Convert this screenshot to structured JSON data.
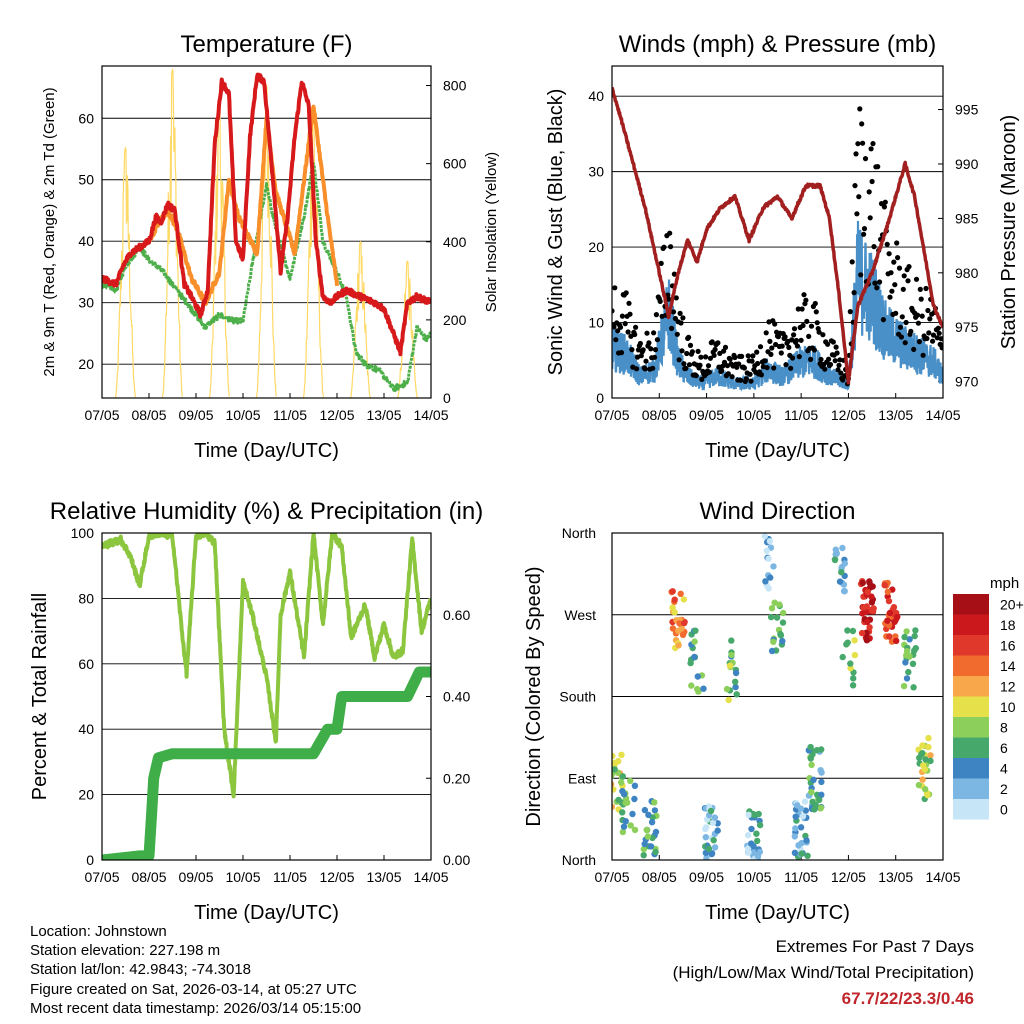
{
  "chart_data": [
    {
      "type": "line",
      "title": "Temperature (F)",
      "xlabel": "Time (Day/UTC)",
      "ylabel_left": "2m & 9m T (Red, Orange) & 2m Td (Green)",
      "ylabel_right": "Solar Insolation (Yellow)",
      "x_ticks": [
        "07/05",
        "08/05",
        "09/05",
        "10/05",
        "11/05",
        "12/05",
        "13/05",
        "14/05"
      ],
      "xlim": [
        0,
        7
      ],
      "ylim_left": [
        14.5,
        68.5
      ],
      "yticks_left": [
        20,
        30,
        40,
        50,
        60
      ],
      "ylim_right": [
        0,
        850
      ],
      "yticks_right": [
        0,
        200,
        400,
        600,
        800
      ],
      "series": [
        {
          "name": "2m T",
          "color": "#d7191c",
          "x": [
            0,
            0.3,
            0.45,
            0.6,
            0.8,
            1.0,
            1.15,
            1.25,
            1.4,
            1.55,
            1.75,
            1.9,
            2.1,
            2.25,
            2.4,
            2.55,
            2.7,
            2.85,
            3.0,
            3.15,
            3.3,
            3.45,
            3.65,
            3.8,
            3.95,
            4.1,
            4.25,
            4.4,
            4.55,
            4.7,
            4.85,
            5.0,
            5.2,
            5.5,
            5.8,
            6.0,
            6.2,
            6.35,
            6.5,
            6.7,
            7.0
          ],
          "y": [
            34,
            33,
            36,
            38,
            39,
            40,
            44,
            43,
            46,
            45,
            33,
            31,
            28,
            32,
            56,
            66,
            64,
            40,
            37,
            57,
            67,
            66,
            49,
            35,
            44,
            57,
            66,
            62,
            40,
            31,
            30,
            31,
            32,
            31,
            30,
            29,
            25,
            22,
            30,
            31,
            30
          ]
        },
        {
          "name": "9m T",
          "color": "#f98f2a",
          "x": [
            1.0,
            1.2,
            1.4,
            1.6,
            1.9,
            2.2,
            2.5,
            2.7,
            2.9,
            3.3,
            3.5,
            3.7,
            4.1,
            4.3,
            4.5,
            4.6,
            4.8,
            5.0
          ],
          "y": [
            40,
            43,
            45,
            42,
            34,
            30,
            35,
            50,
            44,
            38,
            60,
            48,
            38,
            50,
            62,
            56,
            44,
            33
          ]
        },
        {
          "name": "2m Td",
          "color": "#4daf4a",
          "x": [
            0,
            0.3,
            0.5,
            0.8,
            1.0,
            1.3,
            1.5,
            1.8,
            2.0,
            2.2,
            2.5,
            2.8,
            3.0,
            3.3,
            3.5,
            3.7,
            4.0,
            4.3,
            4.5,
            4.7,
            5.0,
            5.2,
            5.4,
            5.6,
            5.9,
            6.2,
            6.5,
            6.7,
            6.9,
            7.0
          ],
          "y": [
            33,
            32,
            36,
            39,
            37,
            35,
            33,
            30,
            28,
            26,
            28,
            27,
            27,
            41,
            49,
            42,
            34,
            44,
            53,
            40,
            35,
            31,
            22,
            20,
            19,
            16,
            17,
            26,
            24,
            25
          ]
        },
        {
          "name": "Solar Insolation",
          "color": "#ffd966",
          "axis": "right",
          "peaks_x": [
            0.5,
            1.5,
            2.5,
            3.5,
            4.5,
            5.5,
            6.5
          ],
          "peaks_y": [
            640,
            840,
            760,
            800,
            720,
            400,
            350
          ]
        }
      ]
    },
    {
      "type": "scatter",
      "title": "Winds (mph) & Pressure (mb)",
      "xlabel": "Time (Day/UTC)",
      "ylabel_left": "Sonic Wind & Gust (Blue, Black)",
      "ylabel_right": "Station Pressure (Maroon)",
      "x_ticks": [
        "07/05",
        "08/05",
        "09/05",
        "10/05",
        "11/05",
        "12/05",
        "13/05",
        "14/05"
      ],
      "xlim": [
        0,
        7
      ],
      "ylim_left": [
        0,
        44
      ],
      "yticks_left": [
        0,
        10,
        20,
        30,
        40
      ],
      "ylim_right": [
        968.5,
        999
      ],
      "yticks_right": [
        970,
        975,
        980,
        985,
        990,
        995
      ],
      "series": [
        {
          "name": "Wind",
          "color": "#4a90c8",
          "x": [
            0,
            0.3,
            0.6,
            0.9,
            1.2,
            1.4,
            1.6,
            1.9,
            2.2,
            2.6,
            3.0,
            3.3,
            3.6,
            4.0,
            4.3,
            4.6,
            5.0,
            5.2,
            5.5,
            5.8,
            6.2,
            6.5,
            6.8,
            7.0
          ],
          "y": [
            7,
            6,
            3,
            4,
            12,
            5,
            3,
            2,
            3,
            2,
            2,
            4,
            3,
            5,
            5,
            3,
            2,
            17,
            14,
            9,
            7,
            6,
            5,
            3
          ]
        },
        {
          "name": "Gust",
          "color": "#000000",
          "x": [
            0,
            0.3,
            0.6,
            0.9,
            1.2,
            1.4,
            1.6,
            1.9,
            2.2,
            2.6,
            3.0,
            3.3,
            3.6,
            4.0,
            4.3,
            4.6,
            5.0,
            5.2,
            5.5,
            5.8,
            6.2,
            6.5,
            6.8,
            7.0
          ],
          "y": [
            12,
            10,
            6,
            7,
            20,
            10,
            6,
            4,
            6,
            4,
            4,
            8,
            6,
            10,
            9,
            6,
            3,
            30,
            27,
            18,
            13,
            11,
            10,
            6
          ]
        },
        {
          "name": "Station Pressure",
          "color": "#a11f1f",
          "axis": "right",
          "x": [
            0,
            0.2,
            0.45,
            0.7,
            1.0,
            1.2,
            1.4,
            1.6,
            1.8,
            2.0,
            2.3,
            2.6,
            2.9,
            3.2,
            3.5,
            3.8,
            4.1,
            4.4,
            4.6,
            4.8,
            5.0,
            5.2,
            5.5,
            5.8,
            6.0,
            6.2,
            6.4,
            6.6,
            6.8,
            7.0
          ],
          "y": [
            997,
            994,
            990,
            986,
            980,
            976,
            980,
            983,
            981,
            984,
            986,
            987,
            983,
            986,
            987,
            985,
            988,
            988,
            985,
            978,
            970,
            977,
            980,
            984,
            987,
            990,
            987,
            982,
            977,
            975
          ]
        }
      ]
    },
    {
      "type": "line",
      "title": "Relative Humidity (%) & Precipitation (in)",
      "xlabel": "Time (Day/UTC)",
      "ylabel_left": "Percent & Total Rainfall",
      "x_ticks": [
        "07/05",
        "08/05",
        "09/05",
        "10/05",
        "11/05",
        "12/05",
        "13/05",
        "14/05"
      ],
      "xlim": [
        0,
        7
      ],
      "ylim_left": [
        0,
        100
      ],
      "yticks_left": [
        0,
        20,
        40,
        60,
        80,
        100
      ],
      "ylim_right": [
        0,
        0.8
      ],
      "yticks_right": [
        "0.00",
        "0.20",
        "0.40",
        "0.60"
      ],
      "series": [
        {
          "name": "Relative Humidity",
          "color": "#8cc63f",
          "x": [
            0,
            0.4,
            0.6,
            0.8,
            1.0,
            1.2,
            1.5,
            1.7,
            1.8,
            2.0,
            2.2,
            2.4,
            2.6,
            2.8,
            3.0,
            3.2,
            3.5,
            3.7,
            3.8,
            4.0,
            4.3,
            4.5,
            4.7,
            4.9,
            5.1,
            5.3,
            5.6,
            5.8,
            6.0,
            6.2,
            6.4,
            6.6,
            6.8,
            7.0
          ],
          "y": [
            96,
            98,
            93,
            84,
            99,
            100,
            99,
            70,
            57,
            99,
            100,
            97,
            40,
            20,
            85,
            75,
            56,
            36,
            75,
            88,
            62,
            100,
            72,
            100,
            96,
            68,
            78,
            62,
            72,
            62,
            64,
            98,
            70,
            80
          ]
        },
        {
          "name": "Total Rainfall",
          "color": "#3fae49",
          "axis": "right",
          "x": [
            0,
            0.8,
            1.0,
            1.05,
            1.1,
            1.2,
            1.5,
            2.0,
            3.0,
            4.0,
            4.5,
            4.8,
            5.0,
            5.1,
            5.2,
            6.0,
            6.5,
            6.75,
            7.0
          ],
          "y": [
            0,
            0.01,
            0.01,
            0.1,
            0.2,
            0.25,
            0.26,
            0.26,
            0.26,
            0.26,
            0.26,
            0.32,
            0.32,
            0.4,
            0.4,
            0.4,
            0.4,
            0.46,
            0.46
          ]
        }
      ]
    },
    {
      "type": "scatter",
      "title": "Wind Direction",
      "xlabel": "Time (Day/UTC)",
      "ylabel_left": "Direction (Colored By Speed)",
      "x_ticks": [
        "07/05",
        "08/05",
        "09/05",
        "10/05",
        "11/05",
        "12/05",
        "13/05",
        "14/05"
      ],
      "xlim": [
        0,
        7
      ],
      "ylim_left": [
        0,
        360
      ],
      "direction_labels": [
        "North",
        "East",
        "South",
        "West",
        "North"
      ],
      "direction_values": [
        0,
        90,
        180,
        270,
        360
      ],
      "colorbar_unit": "mph",
      "colorbar_labels": [
        "20+",
        "18",
        "16",
        "14",
        "12",
        "10",
        "8",
        "6",
        "4",
        "2",
        "0"
      ],
      "colorbar_colors": [
        "#a50f15",
        "#cb181d",
        "#e0392b",
        "#f26b2e",
        "#f8a84a",
        "#e6e04a",
        "#8ccf5a",
        "#46a86a",
        "#3f84c2",
        "#7cb7e3",
        "#c6e6f8"
      ],
      "clusters": [
        {
          "x": 0.1,
          "dir": 85,
          "speed": 9,
          "n": 22
        },
        {
          "x": 0.35,
          "dir": 60,
          "speed": 6,
          "n": 18
        },
        {
          "x": 0.8,
          "dir": 30,
          "speed": 6,
          "n": 24
        },
        {
          "x": 1.4,
          "dir": 265,
          "speed": 13,
          "n": 26
        },
        {
          "x": 1.8,
          "dir": 220,
          "speed": 6,
          "n": 16
        },
        {
          "x": 2.1,
          "dir": 25,
          "speed": 3,
          "n": 30
        },
        {
          "x": 2.5,
          "dir": 210,
          "speed": 7,
          "n": 16
        },
        {
          "x": 3.0,
          "dir": 20,
          "speed": 3,
          "n": 36
        },
        {
          "x": 3.3,
          "dir": 330,
          "speed": 2,
          "n": 14
        },
        {
          "x": 3.5,
          "dir": 250,
          "speed": 6,
          "n": 18
        },
        {
          "x": 4.0,
          "dir": 30,
          "speed": 3,
          "n": 30
        },
        {
          "x": 4.3,
          "dir": 90,
          "speed": 5,
          "n": 34
        },
        {
          "x": 4.8,
          "dir": 330,
          "speed": 4,
          "n": 18
        },
        {
          "x": 5.0,
          "dir": 220,
          "speed": 8,
          "n": 12
        },
        {
          "x": 5.4,
          "dir": 275,
          "speed": 18,
          "n": 40
        },
        {
          "x": 5.9,
          "dir": 275,
          "speed": 16,
          "n": 30
        },
        {
          "x": 6.3,
          "dir": 220,
          "speed": 6,
          "n": 20
        },
        {
          "x": 6.6,
          "dir": 100,
          "speed": 9,
          "n": 26
        }
      ]
    }
  ],
  "footer": {
    "location": "Location: Johnstown",
    "elevation": "Station elevation: 227.198 m",
    "latlon": "Station lat/lon: 42.9843; -74.3018",
    "created": "Figure created on Sat, 2026-03-14, at 05:27 UTC",
    "recent": "Most recent data timestamp: 2026/03/14 05:15:00"
  },
  "extremes": {
    "title": "Extremes For Past 7 Days",
    "subtitle": "(High/Low/Max Wind/Total Precipitation)",
    "values": "67.7/22/23.3/0.46"
  }
}
